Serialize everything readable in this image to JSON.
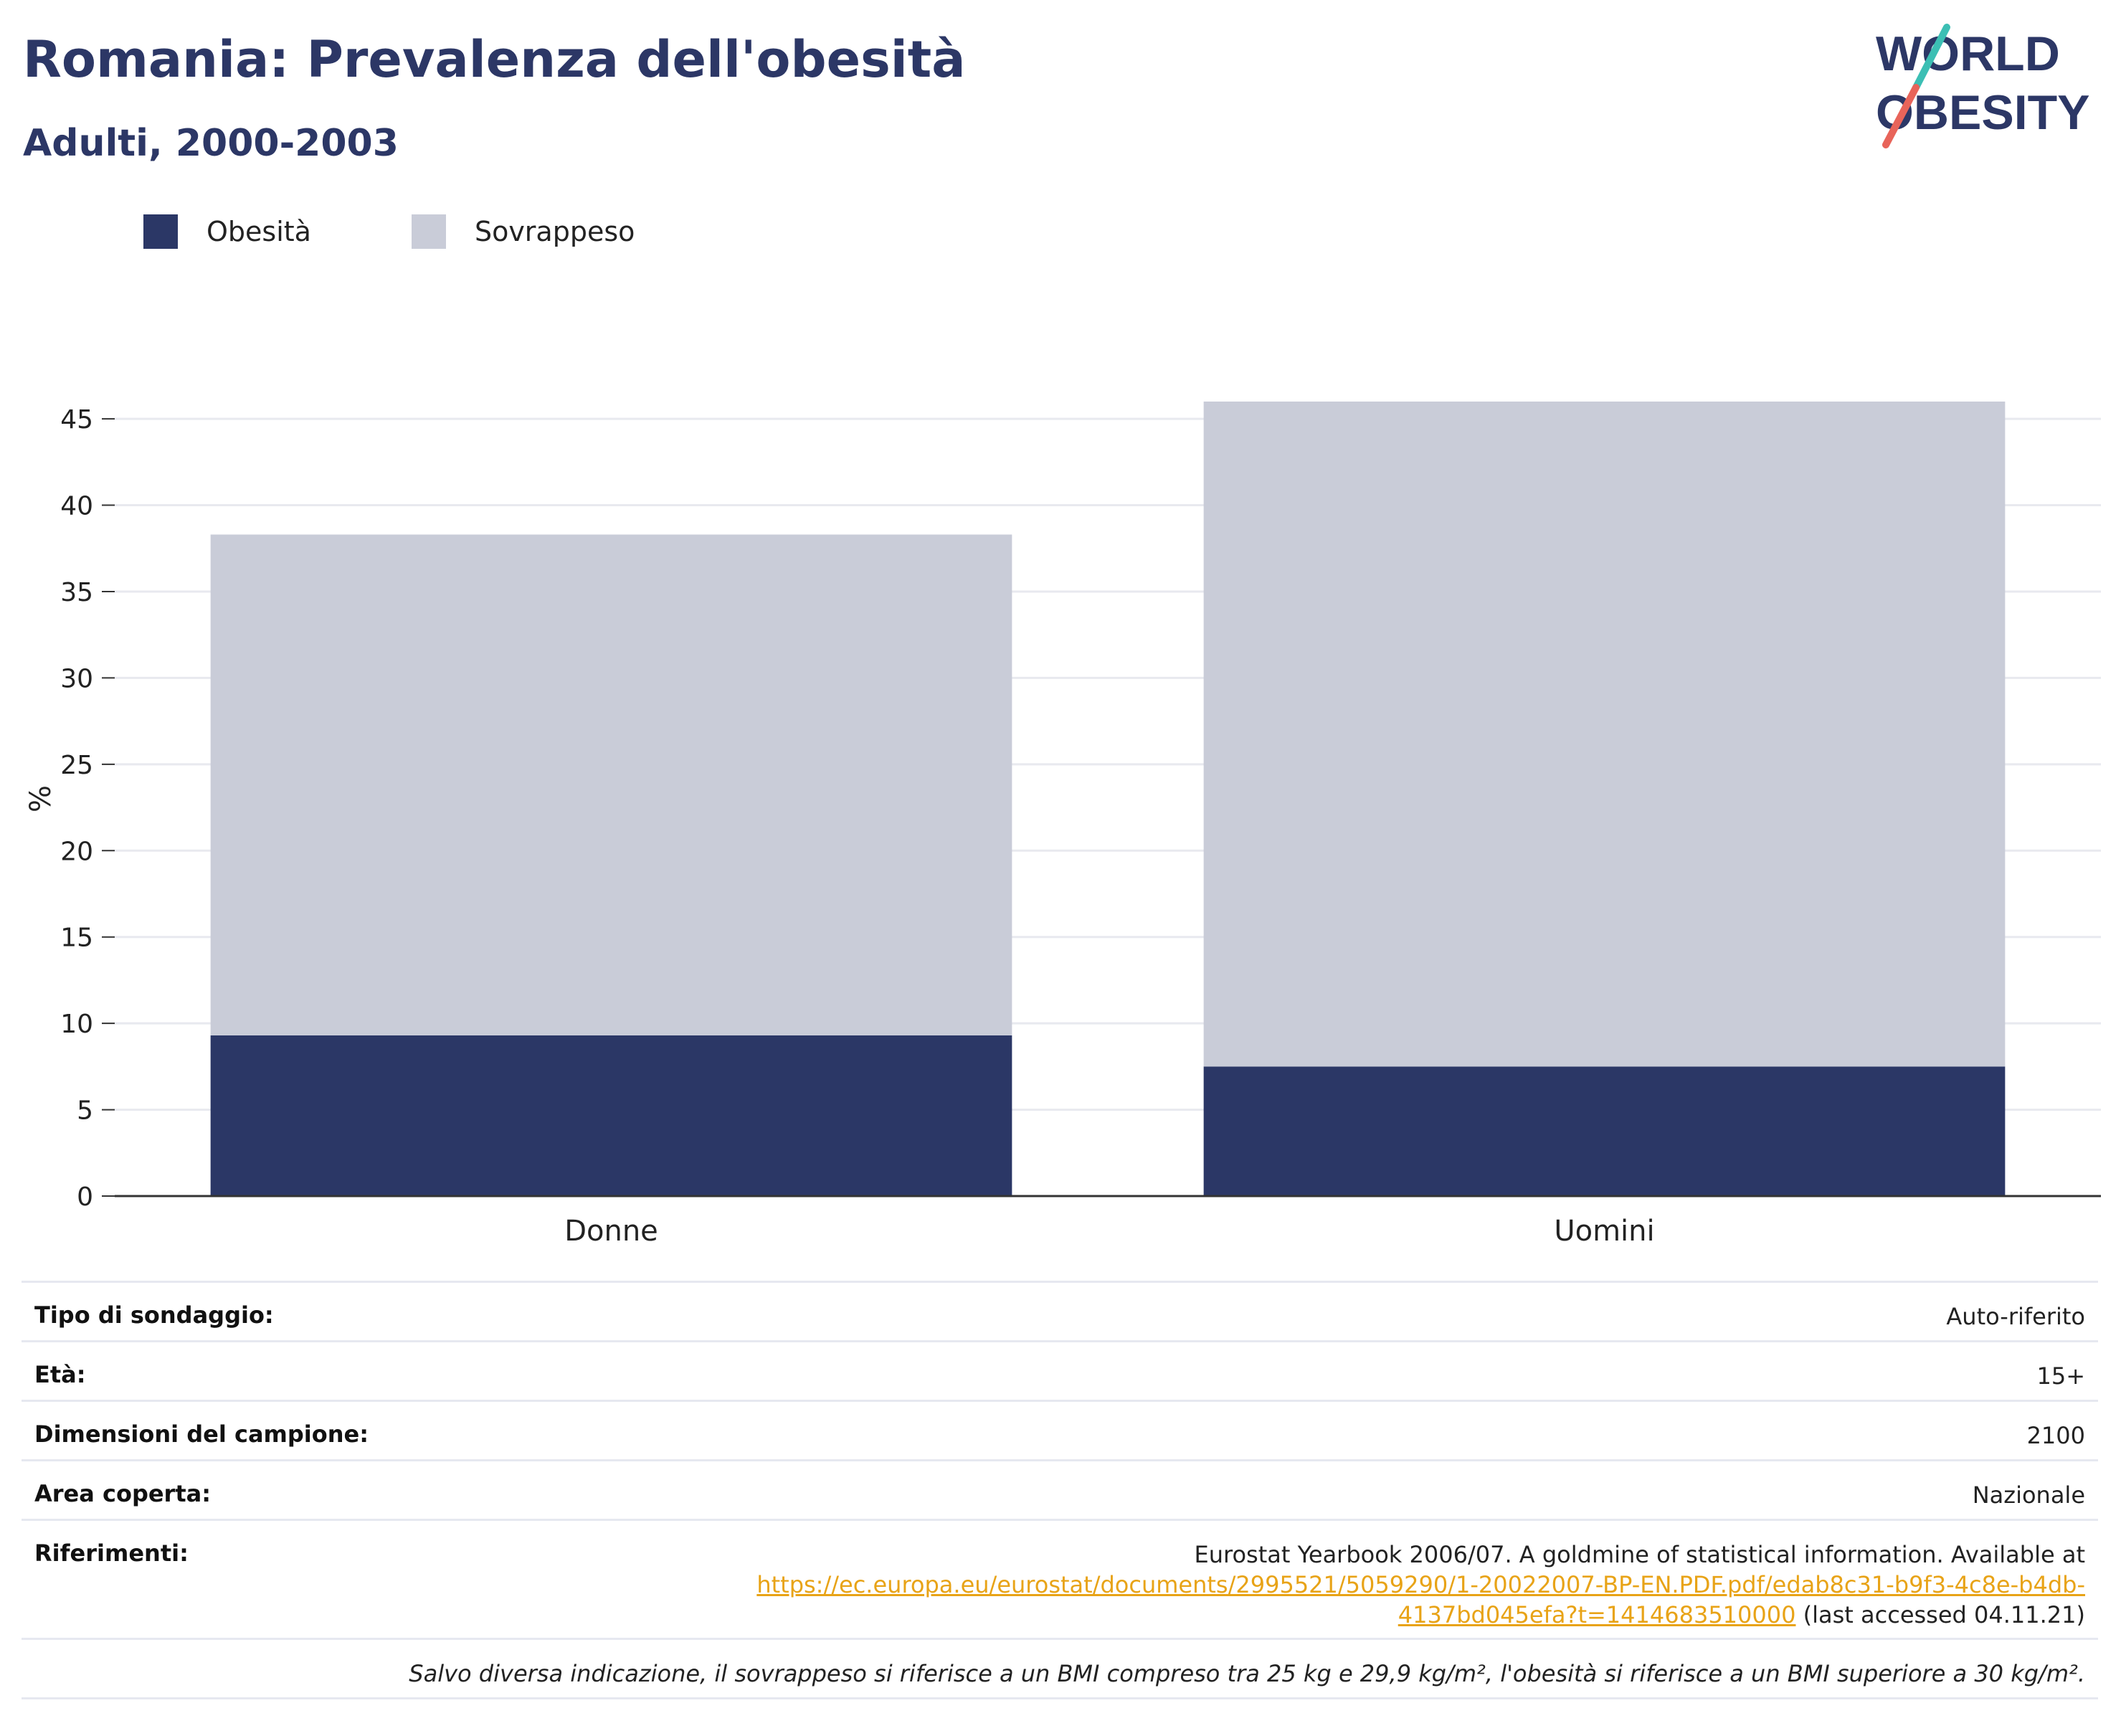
{
  "header": {
    "title": "Romania: Prevalenza dell'obesità",
    "subtitle": "Adulti, 2000-2003"
  },
  "logo": {
    "line1": "WORLD",
    "line2": "OBESITY",
    "colors": {
      "text": "#2c3766",
      "slash_top": "#3cbfb4",
      "slash_bottom": "#e8645a"
    }
  },
  "legend": [
    {
      "label": "Obesità",
      "color": "#2b3766"
    },
    {
      "label": "Sovrappeso",
      "color": "#c9ccd8"
    }
  ],
  "chart_data": {
    "type": "bar",
    "stacked": true,
    "categories": [
      "Donne",
      "Uomini"
    ],
    "series": [
      {
        "name": "Obesità",
        "values": [
          9.3,
          7.5
        ],
        "color": "#2b3766"
      },
      {
        "name": "Sovrappeso",
        "values": [
          29.0,
          38.5
        ],
        "color": "#c9ccd8"
      }
    ],
    "ylabel": "%",
    "ylim": [
      0,
      46
    ],
    "yticks": [
      0,
      5,
      10,
      15,
      20,
      25,
      30,
      35,
      40,
      45
    ],
    "grid": true
  },
  "info": {
    "rows": [
      {
        "key": "Tipo di sondaggio:",
        "value": "Auto-riferito"
      },
      {
        "key": "Età:",
        "value": "15+"
      },
      {
        "key": "Dimensioni del campione:",
        "value": "2100"
      },
      {
        "key": "Area coperta:",
        "value": "Nazionale"
      }
    ],
    "references": {
      "key": "Riferimenti:",
      "text_before": "Eurostat Yearbook 2006/07. A goldmine of statistical information. Available at",
      "link_line1": "https://ec.europa.eu/eurostat/documents/2995521/5059290/1-20022007-BP-EN.PDF.pdf/edab8c31-b9f3-4c8e-b4db-",
      "link_line2": "4137bd045efa?t=1414683510000",
      "text_after": " (last accessed 04.11.21)"
    },
    "note": "Salvo diversa indicazione, il sovrappeso si riferisce a un BMI compreso tra 25 kg e 29,9 kg/m², l'obesità si riferisce a un BMI superiore a 30 kg/m²."
  }
}
